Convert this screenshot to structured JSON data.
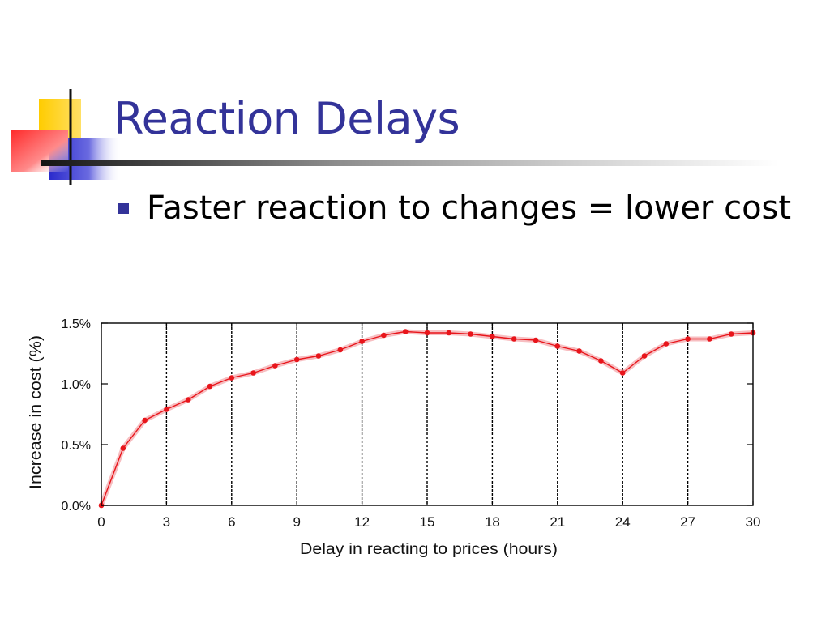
{
  "slide": {
    "title": "Reaction Delays",
    "bullet": "Faster reaction to changes = lower cost"
  },
  "colors": {
    "title": "#333399",
    "bullet_marker": "#333399",
    "series": "#e8151b",
    "band": "#f4a3a6",
    "deco_yellow": "#ffcc00",
    "deco_blue": "#3333cc",
    "deco_red": "#ff4040"
  },
  "chart_data": {
    "type": "line",
    "title": "",
    "xlabel": "Delay in reacting to prices (hours)",
    "ylabel": "Increase in cost (%)",
    "xlim": [
      0,
      30
    ],
    "ylim": [
      0,
      1.5
    ],
    "xticks": [
      0,
      3,
      6,
      9,
      12,
      15,
      18,
      21,
      24,
      27,
      30
    ],
    "yticks": [
      0,
      0.5,
      1.0,
      1.5
    ],
    "ytick_labels": [
      "0.0%",
      "0.5%",
      "1.0%",
      "1.5%"
    ],
    "vertical_gridlines_at": [
      3,
      6,
      9,
      12,
      15,
      18,
      21,
      24,
      27
    ],
    "grid": "vertical dashed",
    "legend": "none",
    "series": [
      {
        "x": [
          0,
          1,
          2,
          3,
          4,
          5,
          6,
          7,
          8,
          9,
          10,
          11,
          12,
          13,
          14,
          15,
          16,
          17,
          18,
          19,
          20,
          21,
          22,
          23,
          24,
          25,
          26,
          27,
          28,
          29,
          30
        ],
        "y": [
          0.0,
          0.47,
          0.7,
          0.79,
          0.87,
          0.98,
          1.05,
          1.09,
          1.15,
          1.2,
          1.23,
          1.28,
          1.35,
          1.4,
          1.43,
          1.42,
          1.42,
          1.41,
          1.39,
          1.37,
          1.36,
          1.31,
          1.27,
          1.19,
          1.09,
          1.23,
          1.33,
          1.37,
          1.37,
          1.41,
          1.42
        ]
      }
    ]
  }
}
